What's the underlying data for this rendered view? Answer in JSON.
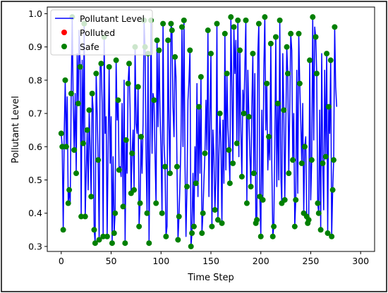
{
  "chart_data": {
    "type": "line",
    "title": "",
    "xlabel": "Time Step",
    "ylabel": "Pollutant Level",
    "xlim": [
      -14,
      314
    ],
    "ylim": [
      0.285,
      1.02
    ],
    "xticks": [
      0,
      50,
      100,
      150,
      200,
      250,
      300
    ],
    "yticks": [
      0.3,
      0.4,
      0.5,
      0.6,
      0.7,
      0.8,
      0.9,
      1.0
    ],
    "xtick_labels": [
      "0",
      "50",
      "100",
      "150",
      "200",
      "250",
      "300"
    ],
    "ytick_labels": [
      "0.3",
      "0.4",
      "0.5",
      "0.6",
      "0.7",
      "0.8",
      "0.9",
      "1.0"
    ],
    "grid": false,
    "legend_position": "top-left",
    "legend": [
      {
        "label": "Pollutant Level",
        "kind": "line",
        "color": "#0000ff"
      },
      {
        "label": "Polluted",
        "kind": "marker",
        "color": "#ff0000"
      },
      {
        "label": "Safe",
        "kind": "marker",
        "color": "#008000"
      }
    ],
    "line_series": {
      "name": "Pollutant Level",
      "color": "#0000ff",
      "x_start": 0,
      "x_step": 1,
      "values": [
        0.64,
        0.6,
        0.35,
        0.64,
        0.8,
        0.6,
        0.75,
        0.43,
        0.47,
        0.43,
        0.76,
        0.99,
        0.73,
        0.59,
        0.76,
        0.52,
        0.88,
        0.73,
        0.95,
        0.84,
        0.39,
        0.86,
        0.61,
        0.97,
        0.39,
        0.51,
        0.65,
        0.47,
        0.71,
        0.59,
        0.45,
        0.76,
        0.71,
        0.35,
        0.31,
        0.82,
        0.7,
        0.56,
        0.32,
        0.84,
        0.85,
        0.73,
        0.33,
        0.93,
        0.64,
        0.69,
        0.33,
        0.6,
        0.84,
        0.55,
        0.69,
        0.31,
        0.57,
        0.34,
        0.4,
        0.86,
        0.68,
        0.74,
        0.53,
        0.54,
        0.51,
        0.73,
        0.42,
        0.8,
        0.31,
        0.62,
        0.52,
        0.79,
        0.85,
        0.71,
        0.46,
        0.58,
        0.65,
        0.47,
        0.9,
        0.67,
        0.64,
        0.78,
        0.36,
        0.43,
        0.63,
        0.52,
        0.67,
        0.98,
        0.9,
        0.57,
        0.4,
        0.88,
        0.31,
        0.63,
        0.98,
        0.58,
        0.76,
        0.74,
        0.57,
        0.43,
        0.92,
        0.66,
        0.89,
        0.7,
        0.59,
        0.4,
        0.97,
        0.61,
        0.54,
        0.33,
        0.36,
        0.92,
        0.66,
        0.52,
        0.97,
        0.95,
        0.72,
        0.63,
        0.87,
        0.81,
        0.54,
        0.32,
        0.39,
        0.49,
        0.62,
        0.96,
        0.6,
        0.98,
        0.55,
        0.33,
        0.48,
        0.74,
        0.8,
        0.89,
        0.3,
        0.34,
        0.52,
        0.36,
        0.6,
        0.49,
        0.79,
        0.45,
        0.72,
        0.52,
        0.81,
        0.34,
        0.4,
        0.5,
        0.58,
        0.74,
        0.59,
        0.95,
        0.45,
        0.7,
        0.88,
        0.36,
        0.65,
        0.57,
        0.41,
        0.51,
        0.97,
        0.38,
        0.57,
        0.7,
        0.61,
        0.37,
        0.68,
        0.49,
        0.94,
        0.53,
        0.82,
        0.66,
        0.59,
        0.49,
        0.99,
        0.78,
        0.55,
        0.96,
        0.82,
        0.92,
        0.61,
        0.98,
        0.57,
        0.89,
        0.65,
        0.51,
        0.77,
        0.7,
        0.84,
        0.98,
        0.43,
        0.83,
        0.69,
        0.58,
        0.48,
        0.72,
        0.88,
        0.52,
        0.82,
        0.37,
        0.38,
        0.88,
        0.97,
        0.45,
        0.33,
        0.71,
        0.44,
        0.83,
        0.99,
        0.65,
        0.79,
        0.53,
        0.63,
        0.56,
        0.91,
        0.55,
        0.33,
        0.36,
        0.61,
        0.93,
        0.48,
        0.73,
        0.5,
        0.98,
        0.52,
        0.43,
        0.88,
        0.71,
        0.44,
        0.66,
        0.9,
        0.82,
        0.52,
        0.72,
        0.94,
        0.89,
        0.56,
        0.7,
        0.36,
        0.44,
        0.83,
        0.46,
        0.94,
        0.79,
        0.68,
        0.55,
        0.73,
        0.4,
        0.6,
        0.63,
        0.39,
        0.37,
        0.38,
        0.86,
        0.44,
        0.56,
        0.99,
        0.62,
        0.96,
        0.93,
        0.82,
        0.43,
        0.4,
        0.71,
        0.35,
        0.88,
        0.55,
        0.41,
        0.83,
        0.57,
        0.88,
        0.34,
        0.72,
        0.64,
        0.86,
        0.33,
        0.47,
        0.56,
        0.96,
        0.78,
        0.72
      ]
    },
    "safe_markers": {
      "name": "Safe",
      "color": "#008000",
      "points": [
        [
          0,
          0.64
        ],
        [
          1,
          0.6
        ],
        [
          2,
          0.35
        ],
        [
          4,
          0.8
        ],
        [
          5,
          0.6
        ],
        [
          7,
          0.43
        ],
        [
          8,
          0.47
        ],
        [
          10,
          0.76
        ],
        [
          11,
          0.99
        ],
        [
          13,
          0.59
        ],
        [
          15,
          0.52
        ],
        [
          17,
          0.73
        ],
        [
          19,
          0.84
        ],
        [
          20,
          0.39
        ],
        [
          22,
          0.61
        ],
        [
          23,
          0.97
        ],
        [
          24,
          0.39
        ],
        [
          26,
          0.65
        ],
        [
          28,
          0.71
        ],
        [
          30,
          0.45
        ],
        [
          31,
          0.76
        ],
        [
          33,
          0.35
        ],
        [
          34,
          0.31
        ],
        [
          35,
          0.82
        ],
        [
          37,
          0.56
        ],
        [
          38,
          0.32
        ],
        [
          40,
          0.85
        ],
        [
          42,
          0.33
        ],
        [
          43,
          0.93
        ],
        [
          46,
          0.33
        ],
        [
          48,
          0.84
        ],
        [
          51,
          0.31
        ],
        [
          53,
          0.34
        ],
        [
          54,
          0.4
        ],
        [
          55,
          0.86
        ],
        [
          57,
          0.74
        ],
        [
          58,
          0.53
        ],
        [
          62,
          0.42
        ],
        [
          64,
          0.31
        ],
        [
          65,
          0.62
        ],
        [
          67,
          0.79
        ],
        [
          68,
          0.85
        ],
        [
          70,
          0.46
        ],
        [
          71,
          0.58
        ],
        [
          73,
          0.47
        ],
        [
          74,
          0.9
        ],
        [
          77,
          0.78
        ],
        [
          78,
          0.36
        ],
        [
          79,
          0.43
        ],
        [
          80,
          0.63
        ],
        [
          83,
          0.98
        ],
        [
          84,
          0.9
        ],
        [
          86,
          0.4
        ],
        [
          87,
          0.88
        ],
        [
          88,
          0.31
        ],
        [
          90,
          0.98
        ],
        [
          93,
          0.74
        ],
        [
          95,
          0.43
        ],
        [
          96,
          0.92
        ],
        [
          98,
          0.89
        ],
        [
          101,
          0.4
        ],
        [
          102,
          0.97
        ],
        [
          104,
          0.54
        ],
        [
          105,
          0.33
        ],
        [
          107,
          0.92
        ],
        [
          109,
          0.52
        ],
        [
          110,
          0.97
        ],
        [
          111,
          0.95
        ],
        [
          114,
          0.87
        ],
        [
          116,
          0.54
        ],
        [
          117,
          0.32
        ],
        [
          118,
          0.39
        ],
        [
          121,
          0.96
        ],
        [
          123,
          0.98
        ],
        [
          126,
          0.48
        ],
        [
          129,
          0.89
        ],
        [
          130,
          0.3
        ],
        [
          131,
          0.34
        ],
        [
          133,
          0.36
        ],
        [
          135,
          0.49
        ],
        [
          138,
          0.72
        ],
        [
          140,
          0.81
        ],
        [
          141,
          0.34
        ],
        [
          142,
          0.4
        ],
        [
          144,
          0.58
        ],
        [
          147,
          0.95
        ],
        [
          150,
          0.88
        ],
        [
          151,
          0.36
        ],
        [
          154,
          0.41
        ],
        [
          156,
          0.97
        ],
        [
          157,
          0.38
        ],
        [
          159,
          0.7
        ],
        [
          161,
          0.37
        ],
        [
          164,
          0.94
        ],
        [
          166,
          0.82
        ],
        [
          168,
          0.59
        ],
        [
          169,
          0.49
        ],
        [
          170,
          0.99
        ],
        [
          172,
          0.55
        ],
        [
          173,
          0.96
        ],
        [
          176,
          0.61
        ],
        [
          177,
          0.98
        ],
        [
          179,
          0.89
        ],
        [
          181,
          0.51
        ],
        [
          183,
          0.7
        ],
        [
          185,
          0.98
        ],
        [
          186,
          0.43
        ],
        [
          188,
          0.69
        ],
        [
          190,
          0.48
        ],
        [
          192,
          0.88
        ],
        [
          193,
          0.52
        ],
        [
          195,
          0.37
        ],
        [
          196,
          0.38
        ],
        [
          198,
          0.97
        ],
        [
          199,
          0.45
        ],
        [
          200,
          0.33
        ],
        [
          202,
          0.44
        ],
        [
          204,
          0.99
        ],
        [
          206,
          0.79
        ],
        [
          208,
          0.63
        ],
        [
          210,
          0.91
        ],
        [
          212,
          0.33
        ],
        [
          213,
          0.36
        ],
        [
          215,
          0.93
        ],
        [
          217,
          0.73
        ],
        [
          219,
          0.98
        ],
        [
          221,
          0.43
        ],
        [
          223,
          0.71
        ],
        [
          224,
          0.44
        ],
        [
          226,
          0.9
        ],
        [
          227,
          0.82
        ],
        [
          228,
          0.52
        ],
        [
          230,
          0.94
        ],
        [
          232,
          0.56
        ],
        [
          234,
          0.36
        ],
        [
          235,
          0.44
        ],
        [
          238,
          0.94
        ],
        [
          239,
          0.79
        ],
        [
          241,
          0.55
        ],
        [
          243,
          0.4
        ],
        [
          244,
          0.6
        ],
        [
          246,
          0.39
        ],
        [
          247,
          0.37
        ],
        [
          248,
          0.38
        ],
        [
          249,
          0.86
        ],
        [
          251,
          0.56
        ],
        [
          252,
          0.99
        ],
        [
          255,
          0.93
        ],
        [
          256,
          0.82
        ],
        [
          257,
          0.43
        ],
        [
          258,
          0.4
        ],
        [
          260,
          0.35
        ],
        [
          262,
          0.55
        ],
        [
          265,
          0.57
        ],
        [
          266,
          0.88
        ],
        [
          267,
          0.34
        ],
        [
          268,
          0.72
        ],
        [
          270,
          0.86
        ],
        [
          271,
          0.33
        ],
        [
          272,
          0.47
        ],
        [
          273,
          0.56
        ],
        [
          274,
          0.96
        ]
      ]
    }
  }
}
